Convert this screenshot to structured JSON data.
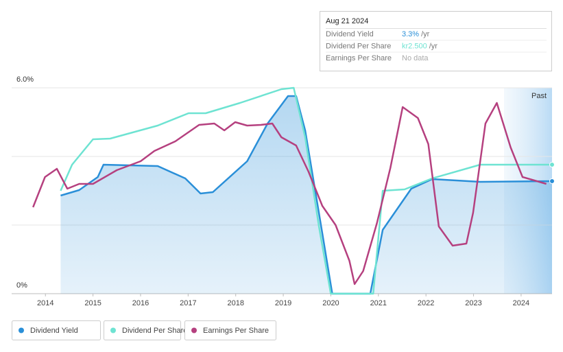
{
  "chart_data": {
    "type": "line",
    "xlim": [
      2013.29,
      2024.65
    ],
    "xticks": [
      2014,
      2015,
      2016,
      2017,
      2018,
      2019,
      2020,
      2021,
      2022,
      2023,
      2024
    ],
    "ylim": [
      0,
      6
    ],
    "yticks": [
      {
        "value": 0,
        "label": "0%"
      },
      {
        "value": 2
      },
      {
        "value": 4
      },
      {
        "value": 6,
        "label": "6.0%"
      }
    ],
    "grid": true,
    "band_label": "Past",
    "series": [
      {
        "name": "Dividend Yield",
        "color": "#2a8fd8",
        "fill_area": true,
        "end_marker": true,
        "x": [
          2014.32,
          2014.71,
          2015.1,
          2015.22,
          2016.36,
          2016.94,
          2017.26,
          2017.52,
          2018.24,
          2018.67,
          2019.1,
          2019.27,
          2019.46,
          2019.82,
          2020.03,
          2020.83,
          2021.09,
          2021.69,
          2022.13,
          2023.14,
          2024.65
        ],
        "values": [
          2.86,
          3.02,
          3.4,
          3.76,
          3.72,
          3.36,
          2.92,
          2.96,
          3.86,
          4.96,
          5.76,
          5.76,
          4.76,
          1.76,
          0,
          0,
          1.86,
          3.06,
          3.34,
          3.26,
          3.28
        ]
      },
      {
        "name": "Dividend Per Share",
        "color": "#6ee3d2",
        "fill_area": false,
        "end_marker": true,
        "x": [
          2014.32,
          2014.56,
          2015.0,
          2015.36,
          2016.36,
          2017.01,
          2017.37,
          2018.09,
          2018.96,
          2019.22,
          2019.46,
          2019.75,
          2020.0,
          2020.89,
          2021.09,
          2021.55,
          2022.13,
          2023.14,
          2024.65
        ],
        "values": [
          3.0,
          3.76,
          4.5,
          4.52,
          4.9,
          5.26,
          5.26,
          5.56,
          5.96,
          6.0,
          4.56,
          1.96,
          0,
          0,
          3.0,
          3.04,
          3.36,
          3.76,
          3.76
        ]
      },
      {
        "name": "Earnings Per Share",
        "color": "#b5407f",
        "fill_area": false,
        "end_marker": false,
        "x": [
          2013.74,
          2013.99,
          2014.24,
          2014.46,
          2014.71,
          2015.0,
          2015.5,
          2016.0,
          2016.29,
          2016.73,
          2017.23,
          2017.55,
          2017.76,
          2017.99,
          2018.24,
          2018.53,
          2018.77,
          2018.96,
          2019.27,
          2019.53,
          2019.82,
          2020.1,
          2020.39,
          2020.5,
          2020.68,
          2020.97,
          2021.25,
          2021.51,
          2021.83,
          2022.05,
          2022.27,
          2022.56,
          2022.85,
          2022.99,
          2023.25,
          2023.49,
          2023.78,
          2024.03,
          2024.53
        ],
        "values": [
          2.52,
          3.4,
          3.64,
          3.06,
          3.2,
          3.2,
          3.6,
          3.86,
          4.16,
          4.44,
          4.92,
          4.96,
          4.76,
          5.0,
          4.9,
          4.92,
          4.96,
          4.56,
          4.32,
          3.56,
          2.56,
          2.0,
          0.96,
          0.28,
          0.66,
          2.06,
          3.66,
          5.44,
          5.12,
          4.36,
          1.96,
          1.4,
          1.46,
          2.36,
          4.96,
          5.56,
          4.26,
          3.4,
          3.2
        ]
      }
    ]
  },
  "tooltip": {
    "date": "Aug 21 2024",
    "rows": [
      {
        "label": "Dividend Yield",
        "value": "3.3%",
        "unit": "/yr"
      },
      {
        "label": "Dividend Per Share",
        "value": "kr2.500",
        "unit": "/yr"
      },
      {
        "label": "Earnings Per Share",
        "value": "No data"
      }
    ]
  }
}
